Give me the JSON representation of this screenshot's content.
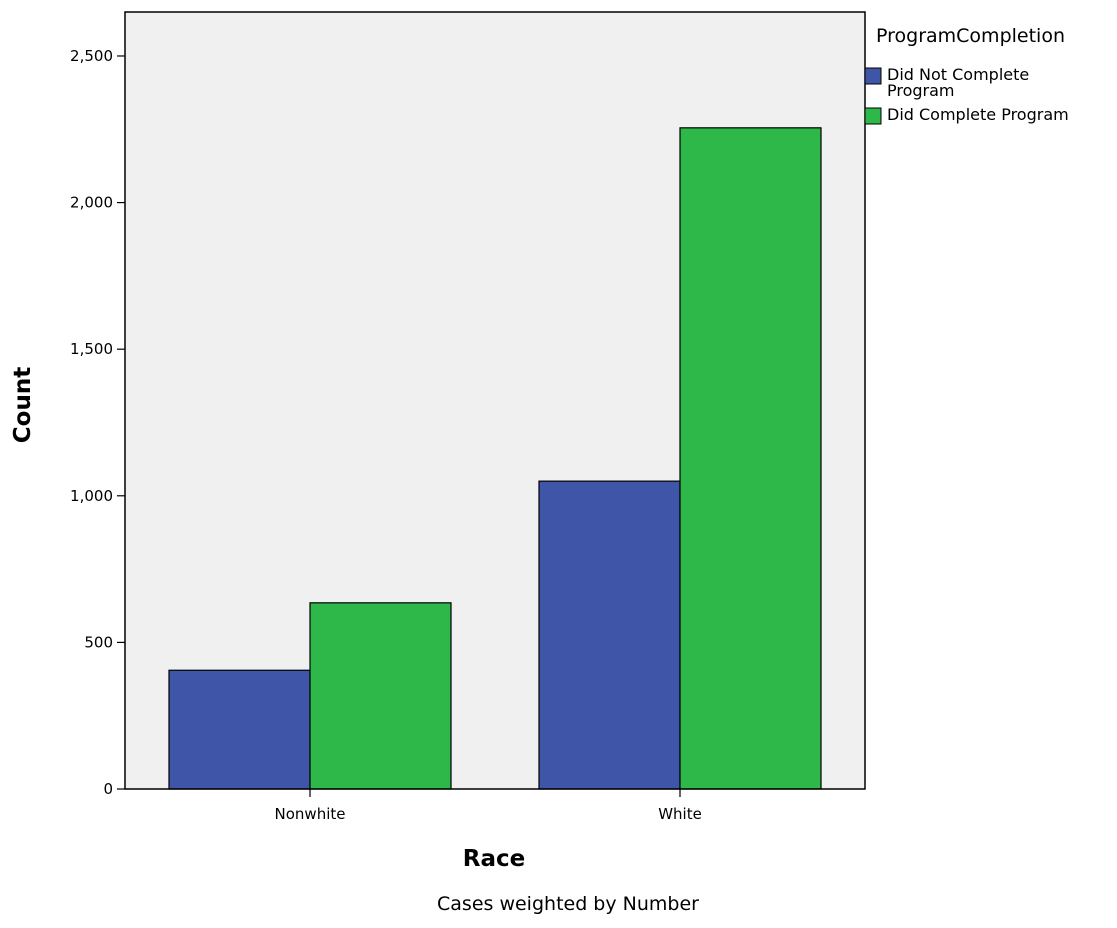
{
  "chart_data": {
    "type": "bar",
    "title": "",
    "xlabel": "Race",
    "ylabel": "Count",
    "categories": [
      "Nonwhite",
      "White"
    ],
    "series": [
      {
        "name": "Did Not Complete Program",
        "values": [
          405,
          1050
        ],
        "color": "#3f56a8"
      },
      {
        "name": "Did Complete Program",
        "values": [
          635,
          2255
        ],
        "color": "#2eb84a"
      }
    ],
    "ylim": [
      0,
      2650
    ],
    "yticks": [
      0,
      500,
      1000,
      1500,
      2000,
      2500
    ],
    "ytick_labels": [
      "0",
      "500",
      "1,000",
      "1,500",
      "2,000",
      "2,500"
    ],
    "grid": false,
    "plot_background": "#f0f0f0",
    "legend": {
      "title": "ProgramCompletion",
      "placement": "right",
      "entries": [
        {
          "lines": [
            "Did Not Complete",
            "Program"
          ],
          "color": "#3f56a8"
        },
        {
          "lines": [
            "Did Complete Program"
          ],
          "color": "#2eb84a"
        }
      ]
    },
    "footnote": "Cases weighted by Number"
  }
}
